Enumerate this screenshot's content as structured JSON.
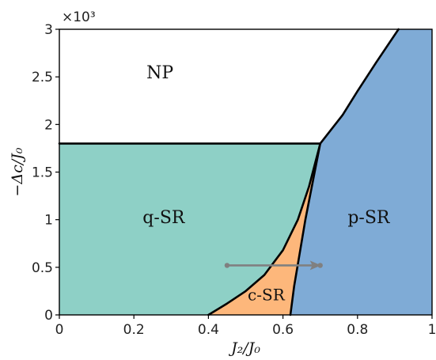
{
  "chart_data": {
    "type": "area",
    "title": "",
    "xlabel": "J₂/J₀",
    "ylabel": "−Δc/J₀",
    "y_multiplier_label": "×10³",
    "xlim": [
      0,
      1
    ],
    "ylim": [
      0,
      3
    ],
    "x_ticks": [
      "0",
      "0.2",
      "0.4",
      "0.6",
      "0.8",
      "1"
    ],
    "y_ticks": [
      "0",
      "0.5",
      "1",
      "1.5",
      "2",
      "2.5",
      "3"
    ],
    "colors": {
      "NP": "#ffffff",
      "q-SR": "#8ed0c6",
      "c-SR": "#fdb77b",
      "p-SR": "#7fabd6",
      "boundary": "#000000",
      "arrow": "#808080"
    },
    "regions": [
      {
        "name": "NP",
        "label_at": [
          0.27,
          2.55
        ]
      },
      {
        "name": "q-SR",
        "label_at": [
          0.28,
          1.03
        ]
      },
      {
        "name": "c-SR",
        "label_at": [
          0.555,
          0.22
        ]
      },
      {
        "name": "p-SR",
        "label_at": [
          0.83,
          1.03
        ]
      }
    ],
    "boundaries": [
      {
        "name": "np-qsr-line",
        "points": [
          [
            0,
            1.8
          ],
          [
            0.7,
            1.8
          ]
        ]
      },
      {
        "name": "np-psr-line",
        "points": [
          [
            0.7,
            1.8
          ],
          [
            0.76,
            2.1
          ],
          [
            0.8,
            2.35
          ],
          [
            0.85,
            2.65
          ],
          [
            0.91,
            3.0
          ]
        ]
      },
      {
        "name": "qsr-csr-line",
        "points": [
          [
            0.4,
            0.0
          ],
          [
            0.45,
            0.12
          ],
          [
            0.5,
            0.25
          ],
          [
            0.55,
            0.42
          ],
          [
            0.6,
            0.68
          ],
          [
            0.64,
            1.0
          ],
          [
            0.67,
            1.35
          ],
          [
            0.7,
            1.8
          ]
        ]
      },
      {
        "name": "csr-psr-line",
        "points": [
          [
            0.62,
            0.0
          ],
          [
            0.63,
            0.3
          ],
          [
            0.645,
            0.65
          ],
          [
            0.66,
            1.0
          ],
          [
            0.68,
            1.4
          ],
          [
            0.7,
            1.8
          ]
        ]
      }
    ],
    "arrow": {
      "from": [
        0.45,
        0.52
      ],
      "to": [
        0.7,
        0.52
      ]
    },
    "grid": false,
    "legend": "none"
  }
}
